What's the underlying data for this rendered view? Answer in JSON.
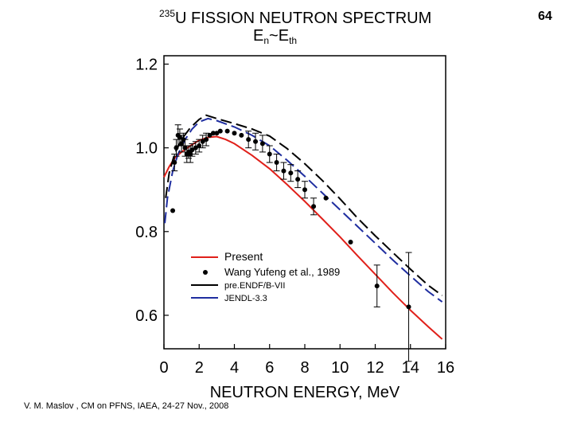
{
  "slide": {
    "title_sup": "235",
    "title_main": "U FISSION NEUTRON SPECTRUM",
    "title_line2_base": "E",
    "title_line2_sub1": "n",
    "title_line2_mid": "~E",
    "title_line2_sub2": "th",
    "page_number": "64",
    "footer": "V. M. Maslov ,   CM on PFNS, IAEA, 24-27 Nov., 2008"
  },
  "chart_data": {
    "type": "line",
    "xlabel": "NEUTRON ENERGY, MeV",
    "ylabel": "",
    "xlim": [
      0,
      16
    ],
    "ylim": [
      0.52,
      1.22
    ],
    "x_ticks": [
      "0",
      "2",
      "4",
      "6",
      "8",
      "10",
      "12",
      "14",
      "16"
    ],
    "y_ticks": [
      "0.6",
      "0.8",
      "1.0",
      "1.2"
    ],
    "legend_position": "bottom-left",
    "series": [
      {
        "name": "Present",
        "kind": "line",
        "color": "#e0201a",
        "dash": "solid",
        "points": [
          [
            0.0,
            0.93
          ],
          [
            0.3,
            0.955
          ],
          [
            0.6,
            0.975
          ],
          [
            1.0,
            0.99
          ],
          [
            1.5,
            1.005
          ],
          [
            2.0,
            1.018
          ],
          [
            2.5,
            1.025
          ],
          [
            3.0,
            1.027
          ],
          [
            3.5,
            1.02
          ],
          [
            4.0,
            1.01
          ],
          [
            5.0,
            0.982
          ],
          [
            6.0,
            0.95
          ],
          [
            7.0,
            0.912
          ],
          [
            8.0,
            0.872
          ],
          [
            9.0,
            0.83
          ],
          [
            10.0,
            0.787
          ],
          [
            11.0,
            0.742
          ],
          [
            12.0,
            0.698
          ],
          [
            13.0,
            0.654
          ],
          [
            14.0,
            0.612
          ],
          [
            15.0,
            0.573
          ],
          [
            15.8,
            0.543
          ]
        ]
      },
      {
        "name": "pre.ENDF/B-VII",
        "kind": "line",
        "color": "#000000",
        "dash": "14,6",
        "points": [
          [
            0.1,
            0.88
          ],
          [
            0.3,
            0.94
          ],
          [
            0.6,
            0.985
          ],
          [
            1.0,
            1.02
          ],
          [
            1.5,
            1.048
          ],
          [
            2.0,
            1.068
          ],
          [
            2.4,
            1.078
          ],
          [
            3.0,
            1.07
          ],
          [
            4.0,
            1.058
          ],
          [
            5.0,
            1.045
          ],
          [
            6.0,
            1.028
          ],
          [
            7.0,
            0.998
          ],
          [
            8.0,
            0.962
          ],
          [
            9.0,
            0.922
          ],
          [
            10.0,
            0.878
          ],
          [
            11.0,
            0.832
          ],
          [
            12.0,
            0.79
          ],
          [
            13.0,
            0.75
          ],
          [
            14.0,
            0.71
          ],
          [
            15.0,
            0.672
          ],
          [
            15.8,
            0.647
          ]
        ]
      },
      {
        "name": "JENDL-3.3",
        "kind": "line",
        "color": "#1f2ea0",
        "dash": "14,6",
        "points": [
          [
            0.05,
            0.82
          ],
          [
            0.2,
            0.88
          ],
          [
            0.5,
            0.945
          ],
          [
            0.8,
            0.985
          ],
          [
            1.2,
            1.02
          ],
          [
            1.6,
            1.045
          ],
          [
            2.0,
            1.062
          ],
          [
            2.5,
            1.07
          ],
          [
            3.0,
            1.065
          ],
          [
            4.0,
            1.05
          ],
          [
            5.0,
            1.03
          ],
          [
            6.0,
            1.005
          ],
          [
            7.0,
            0.97
          ],
          [
            8.0,
            0.932
          ],
          [
            9.0,
            0.892
          ],
          [
            10.0,
            0.852
          ],
          [
            11.0,
            0.812
          ],
          [
            12.0,
            0.772
          ],
          [
            13.0,
            0.732
          ],
          [
            14.0,
            0.694
          ],
          [
            15.0,
            0.657
          ],
          [
            15.8,
            0.632
          ]
        ]
      },
      {
        "name": "Wang Yufeng et al., 1989",
        "kind": "scatter",
        "color": "#000000",
        "points": [
          {
            "x": 0.5,
            "y": 0.85,
            "err": 0.0
          },
          {
            "x": 0.6,
            "y": 0.965,
            "err": 0.02
          },
          {
            "x": 0.7,
            "y": 1.0,
            "err": 0.02
          },
          {
            "x": 0.8,
            "y": 1.03,
            "err": 0.025
          },
          {
            "x": 0.9,
            "y": 1.025,
            "err": 0.02
          },
          {
            "x": 1.0,
            "y": 1.01,
            "err": 0.02
          },
          {
            "x": 1.1,
            "y": 1.02,
            "err": 0.015
          },
          {
            "x": 1.2,
            "y": 1.0,
            "err": 0.02
          },
          {
            "x": 1.3,
            "y": 0.985,
            "err": 0.02
          },
          {
            "x": 1.4,
            "y": 0.99,
            "err": 0.015
          },
          {
            "x": 1.5,
            "y": 0.985,
            "err": 0.02
          },
          {
            "x": 1.6,
            "y": 0.995,
            "err": 0.015
          },
          {
            "x": 1.8,
            "y": 1.0,
            "err": 0.015
          },
          {
            "x": 2.0,
            "y": 1.005,
            "err": 0.015
          },
          {
            "x": 2.2,
            "y": 1.015,
            "err": 0.015
          },
          {
            "x": 2.4,
            "y": 1.02,
            "err": 0.015
          },
          {
            "x": 2.6,
            "y": 1.03,
            "err": 0.0
          },
          {
            "x": 2.8,
            "y": 1.035,
            "err": 0.0
          },
          {
            "x": 3.0,
            "y": 1.035,
            "err": 0.0
          },
          {
            "x": 3.2,
            "y": 1.04,
            "err": 0.0
          },
          {
            "x": 3.6,
            "y": 1.04,
            "err": 0.0
          },
          {
            "x": 4.0,
            "y": 1.035,
            "err": 0.0
          },
          {
            "x": 4.4,
            "y": 1.03,
            "err": 0.0
          },
          {
            "x": 4.8,
            "y": 1.02,
            "err": 0.02
          },
          {
            "x": 5.2,
            "y": 1.015,
            "err": 0.02
          },
          {
            "x": 5.6,
            "y": 1.01,
            "err": 0.02
          },
          {
            "x": 6.0,
            "y": 0.985,
            "err": 0.02
          },
          {
            "x": 6.4,
            "y": 0.965,
            "err": 0.02
          },
          {
            "x": 6.8,
            "y": 0.945,
            "err": 0.02
          },
          {
            "x": 7.2,
            "y": 0.94,
            "err": 0.02
          },
          {
            "x": 7.6,
            "y": 0.925,
            "err": 0.02
          },
          {
            "x": 8.0,
            "y": 0.9,
            "err": 0.02
          },
          {
            "x": 8.5,
            "y": 0.86,
            "err": 0.02
          },
          {
            "x": 9.2,
            "y": 0.88,
            "err": 0.0
          },
          {
            "x": 10.6,
            "y": 0.775,
            "err": 0.0
          },
          {
            "x": 12.1,
            "y": 0.67,
            "err": 0.05
          },
          {
            "x": 13.9,
            "y": 0.62,
            "err": 0.13
          }
        ]
      }
    ]
  }
}
